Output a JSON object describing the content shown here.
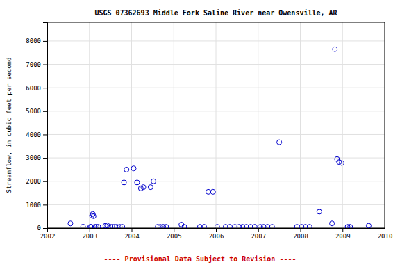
{
  "chart_data": {
    "type": "scatter",
    "title": "USGS 07362693 Middle Fork Saline River near Owensville, AR",
    "y_label": "Streamflow, in cubic feet per second",
    "annotations": [
      {
        "text": "---- Provisional Data Subject to Revision ----",
        "color": "#cc0000"
      }
    ],
    "x": [
      2002.55,
      2002.85,
      2003.02,
      2003.04,
      2003.06,
      2003.08,
      2003.1,
      2003.13,
      2003.17,
      2003.21,
      2003.38,
      2003.42,
      2003.5,
      2003.55,
      2003.6,
      2003.65,
      2003.72,
      2003.78,
      2003.82,
      2003.88,
      2004.05,
      2004.13,
      2004.22,
      2004.28,
      2004.45,
      2004.52,
      2004.62,
      2004.68,
      2004.75,
      2004.82,
      2005.18,
      2005.25,
      2005.62,
      2005.72,
      2005.82,
      2005.93,
      2006.03,
      2006.23,
      2006.33,
      2006.45,
      2006.55,
      2006.63,
      2006.72,
      2006.82,
      2006.92,
      2007.05,
      2007.13,
      2007.22,
      2007.33,
      2007.5,
      2007.92,
      2008.03,
      2008.12,
      2008.22,
      2008.45,
      2008.75,
      2008.82,
      2008.87,
      2008.92,
      2008.98,
      2009.12,
      2009.18,
      2009.62
    ],
    "values": [
      200,
      60,
      55,
      55,
      530,
      600,
      510,
      55,
      55,
      55,
      100,
      120,
      55,
      55,
      55,
      55,
      55,
      55,
      1950,
      2500,
      2550,
      1950,
      1700,
      1750,
      1750,
      2000,
      55,
      55,
      55,
      55,
      150,
      55,
      55,
      55,
      1550,
      1550,
      55,
      55,
      55,
      55,
      55,
      55,
      55,
      55,
      55,
      55,
      55,
      55,
      55,
      3670,
      55,
      55,
      55,
      55,
      700,
      200,
      7650,
      2950,
      2820,
      2780,
      55,
      55,
      100
    ],
    "color": "#0000CC",
    "marker": "open-circle",
    "xlim": [
      2002,
      2010
    ],
    "ylim": [
      0,
      8800
    ],
    "xticks": [
      2002,
      2003,
      2004,
      2005,
      2006,
      2007,
      2008,
      2009,
      2010
    ],
    "yticks": [
      0,
      1000,
      2000,
      3000,
      4000,
      5000,
      6000,
      7000,
      8000
    ],
    "grid": true
  }
}
